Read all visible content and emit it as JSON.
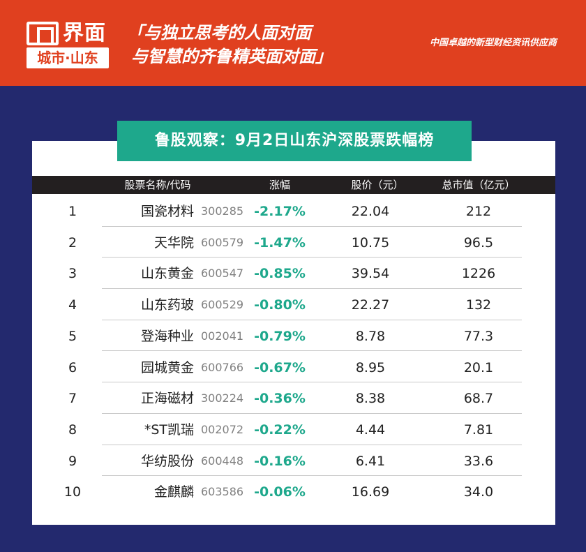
{
  "header": {
    "logo_text": "界面",
    "logo_sub": "城市·山东",
    "slogan_line1": "「与独立思考的人面对面",
    "slogan_line2": "与智慧的齐鲁精英面对面」",
    "tagline": "中国卓越的新型财经资讯供应商",
    "colors": {
      "brand_red": "#e0401f",
      "accent_green": "#1ea88c",
      "background_navy": "#23296e"
    }
  },
  "title": "鲁股观察：9月2日山东沪深股票跌幅榜",
  "table": {
    "headers": {
      "name_code": "股票名称/代码",
      "change": "涨幅",
      "price": "股价（元）",
      "market_cap": "总市值（亿元）"
    },
    "rows": [
      {
        "rank": "1",
        "name": "国瓷材料",
        "code": "300285",
        "change": "-2.17%",
        "price": "22.04",
        "market_cap": "212"
      },
      {
        "rank": "2",
        "name": "天华院",
        "code": "600579",
        "change": "-1.47%",
        "price": "10.75",
        "market_cap": "96.5"
      },
      {
        "rank": "3",
        "name": "山东黄金",
        "code": "600547",
        "change": "-0.85%",
        "price": "39.54",
        "market_cap": "1226"
      },
      {
        "rank": "4",
        "name": "山东药玻",
        "code": "600529",
        "change": "-0.80%",
        "price": "22.27",
        "market_cap": "132"
      },
      {
        "rank": "5",
        "name": "登海种业",
        "code": "002041",
        "change": "-0.79%",
        "price": "8.78",
        "market_cap": "77.3"
      },
      {
        "rank": "6",
        "name": "园城黄金",
        "code": "600766",
        "change": "-0.67%",
        "price": "8.95",
        "market_cap": "20.1"
      },
      {
        "rank": "7",
        "name": "正海磁材",
        "code": "300224",
        "change": "-0.36%",
        "price": "8.38",
        "market_cap": "68.7"
      },
      {
        "rank": "8",
        "name": "*ST凯瑞",
        "code": "002072",
        "change": "-0.22%",
        "price": "4.44",
        "market_cap": "7.81"
      },
      {
        "rank": "9",
        "name": "华纺股份",
        "code": "600448",
        "change": "-0.16%",
        "price": "6.41",
        "market_cap": "33.6"
      },
      {
        "rank": "10",
        "name": "金麒麟",
        "code": "603586",
        "change": "-0.06%",
        "price": "16.69",
        "market_cap": "34.0"
      }
    ]
  }
}
